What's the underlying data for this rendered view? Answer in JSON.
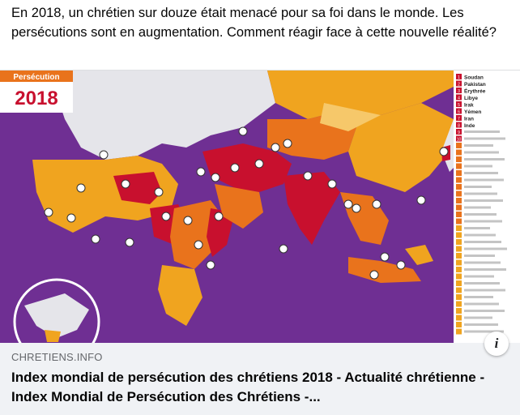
{
  "post": {
    "text": "En 2018, un chrétien sur douze était menacé pour sa foi dans le monde. Les persécutions sont en augmentation. Comment réagir face à cette nouvelle réalité?"
  },
  "link_card": {
    "domain": "CHRETIENS.INFO",
    "title": "Index mondial de persécution des chrétiens 2018 - Actualité chrétienne - Index Mondial de Persécution des Chrétiens -...",
    "info_label": "i",
    "image": {
      "badge_title": "Persécution",
      "badge_year": "2018",
      "colors": {
        "background": "#6f2f93",
        "extreme": "#c8102e",
        "very_high": "#e9731c",
        "high": "#f0a41f",
        "land": "#ffffff"
      },
      "legend_ranks": [
        "1",
        "2",
        "3",
        "4",
        "5",
        "6",
        "7",
        "8",
        "9",
        "10"
      ],
      "legend_countries": [
        "Soudan",
        "Pakistan",
        "Érythrée",
        "Libye",
        "Irak",
        "Yémen",
        "Iran",
        "Inde"
      ]
    }
  }
}
